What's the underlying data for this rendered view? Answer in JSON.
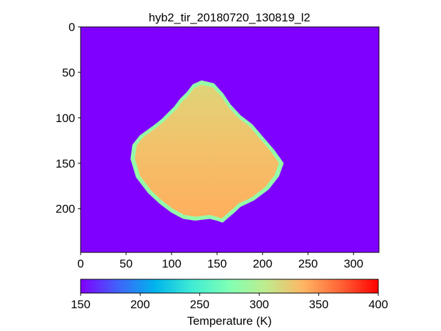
{
  "chart_data": {
    "type": "heatmap",
    "title": "hyb2_tir_20180720_130819_l2",
    "image_width": 328,
    "image_height": 248,
    "x_ticks": [
      0,
      50,
      100,
      150,
      200,
      250,
      300
    ],
    "y_ticks": [
      0,
      50,
      100,
      150,
      200
    ],
    "background_value": 150,
    "colorbar": {
      "label": "Temperature (K)",
      "range": [
        150,
        400
      ],
      "ticks": [
        150,
        200,
        250,
        300,
        350,
        400
      ],
      "colormap": "rainbow"
    },
    "object": {
      "outline": [
        [
          133,
          60
        ],
        [
          146,
          63
        ],
        [
          156,
          74
        ],
        [
          164,
          86
        ],
        [
          175,
          98
        ],
        [
          188,
          108
        ],
        [
          200,
          122
        ],
        [
          212,
          136
        ],
        [
          222,
          150
        ],
        [
          217,
          164
        ],
        [
          206,
          178
        ],
        [
          190,
          190
        ],
        [
          175,
          197
        ],
        [
          170,
          202
        ],
        [
          156,
          214
        ],
        [
          150,
          212
        ],
        [
          142,
          210
        ],
        [
          126,
          212
        ],
        [
          113,
          210
        ],
        [
          100,
          203
        ],
        [
          88,
          194
        ],
        [
          75,
          182
        ],
        [
          62,
          165
        ],
        [
          56,
          145
        ],
        [
          58,
          130
        ],
        [
          66,
          120
        ],
        [
          80,
          110
        ],
        [
          90,
          102
        ],
        [
          96,
          96
        ],
        [
          104,
          88
        ],
        [
          110,
          80
        ],
        [
          118,
          72
        ],
        [
          124,
          64
        ]
      ],
      "edge_temperature": 285,
      "upper_temperature": 322,
      "lower_temperature": 340
    }
  }
}
